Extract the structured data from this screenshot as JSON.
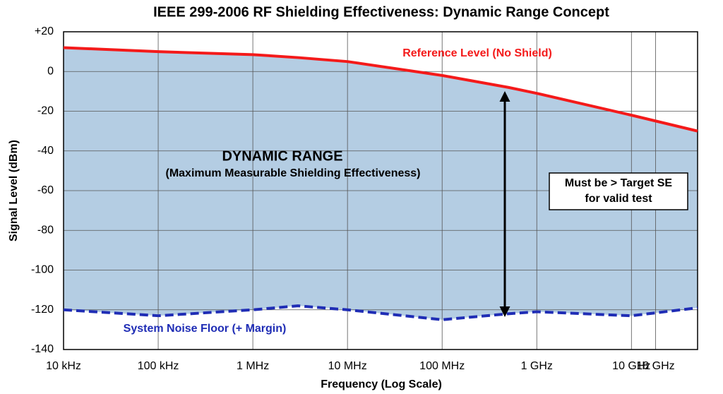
{
  "chart_data": {
    "type": "line",
    "title": "IEEE 299-2006 RF Shielding Effectiveness: Dynamic Range Concept",
    "x_label": "Frequency (Log Scale)",
    "y_label": "Signal Level (dBm)",
    "x_scale": "log",
    "x": [
      10000,
      100000,
      1000000,
      3000000,
      10000000,
      100000000,
      500000000,
      1000000000,
      10000000000,
      50000000000
    ],
    "series": [
      {
        "name": "Reference Level (No Shield)",
        "color": "#f41a1a",
        "style": "solid",
        "values": [
          12,
          10,
          8.5,
          7,
          5,
          -2,
          -8,
          -11,
          -22,
          -30
        ]
      },
      {
        "name": "System Noise Floor (+ Margin)",
        "color": "#1f2db5",
        "style": "dashed",
        "values": [
          -120,
          -123,
          -120,
          -118,
          -120,
          -125,
          -122,
          -121,
          -123,
          -119
        ]
      }
    ],
    "fill_color": "#b4cde3",
    "xlim": [
      10000,
      50000000000
    ],
    "xticks": [
      {
        "value": 10000,
        "label": "10 kHz"
      },
      {
        "value": 100000,
        "label": "100 kHz"
      },
      {
        "value": 1000000,
        "label": "1 MHz"
      },
      {
        "value": 10000000,
        "label": "10 MHz"
      },
      {
        "value": 100000000,
        "label": "100 MHz"
      },
      {
        "value": 1000000000,
        "label": "1 GHz"
      },
      {
        "value": 10000000000,
        "label": "10 GHz"
      },
      {
        "value": 18000000000,
        "label": "18 GHz"
      }
    ],
    "ylim": [
      -140,
      20
    ],
    "yticks": [
      -140,
      -120,
      -100,
      -80,
      -60,
      -40,
      -20,
      0,
      {
        "value": 20,
        "label": "+20"
      }
    ],
    "grid": true,
    "annotations": [
      "DYNAMIC RANGE",
      "(Maximum Measurable Shielding Effectiveness)",
      "Must be > Target SE",
      "for valid test"
    ]
  }
}
